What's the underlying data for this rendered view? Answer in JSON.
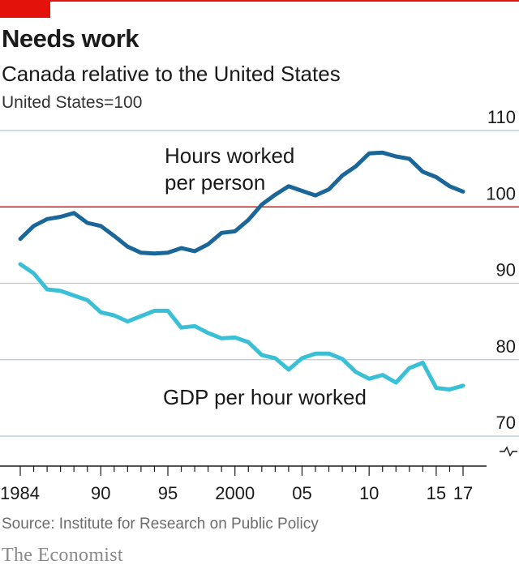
{
  "header": {
    "title": "Needs work",
    "subtitle": "Canada relative to the United States",
    "unit": "United States=100"
  },
  "footer": {
    "source": "Source: Institute for Research on Public Policy",
    "brand": "The Economist"
  },
  "colors": {
    "accent": "#e3120b",
    "hours_line": "#1b6698",
    "gdp_line": "#39c0d6",
    "grid": "#b7c6d4",
    "reference_line": "#e3120b"
  },
  "chart_data": {
    "type": "line",
    "title": "Needs work",
    "subtitle": "Canada relative to the United States",
    "ylabel": "United States=100",
    "ylim": [
      70,
      110
    ],
    "yticks": [
      110,
      100,
      90,
      80,
      70
    ],
    "reference_value": 100,
    "axis_break": true,
    "xlim": [
      1984,
      2017
    ],
    "xticks": [
      {
        "value": 1984,
        "label": "1984"
      },
      {
        "value": 1990,
        "label": "90"
      },
      {
        "value": 1995,
        "label": "95"
      },
      {
        "value": 2000,
        "label": "2000"
      },
      {
        "value": 2005,
        "label": "05"
      },
      {
        "value": 2010,
        "label": "10"
      },
      {
        "value": 2015,
        "label": "15"
      },
      {
        "value": 2017,
        "label": "17"
      }
    ],
    "grid": true,
    "series": [
      {
        "name": "Hours worked per person",
        "label_lines": [
          "Hours worked",
          "per person"
        ],
        "color": "#1b6698",
        "x": [
          1984,
          1985,
          1986,
          1987,
          1988,
          1989,
          1990,
          1991,
          1992,
          1993,
          1994,
          1995,
          1996,
          1997,
          1998,
          1999,
          2000,
          2001,
          2002,
          2003,
          2004,
          2005,
          2006,
          2007,
          2008,
          2009,
          2010,
          2011,
          2012,
          2013,
          2014,
          2015,
          2016,
          2017
        ],
        "values": [
          95.8,
          97.5,
          98.4,
          98.7,
          99.2,
          97.9,
          97.5,
          96.2,
          94.8,
          94.0,
          93.9,
          94.0,
          94.6,
          94.2,
          95.1,
          96.6,
          96.8,
          98.3,
          100.3,
          101.6,
          102.7,
          102.1,
          101.5,
          102.3,
          104.1,
          105.3,
          107.0,
          107.1,
          106.6,
          106.3,
          104.6,
          103.9,
          102.7,
          102.0
        ]
      },
      {
        "name": "GDP per hour worked",
        "label_lines": [
          "GDP per hour worked"
        ],
        "color": "#39c0d6",
        "x": [
          1984,
          1985,
          1986,
          1987,
          1988,
          1989,
          1990,
          1991,
          1992,
          1993,
          1994,
          1995,
          1996,
          1997,
          1998,
          1999,
          2000,
          2001,
          2002,
          2003,
          2004,
          2005,
          2006,
          2007,
          2008,
          2009,
          2010,
          2011,
          2012,
          2013,
          2014,
          2015,
          2016,
          2017
        ],
        "values": [
          92.5,
          91.3,
          89.2,
          89.0,
          88.4,
          87.8,
          86.2,
          85.8,
          85.0,
          85.7,
          86.4,
          86.4,
          84.2,
          84.4,
          83.5,
          82.8,
          82.9,
          82.3,
          80.6,
          80.2,
          78.7,
          80.2,
          80.8,
          80.8,
          80.1,
          78.4,
          77.5,
          78.0,
          77.0,
          78.9,
          79.6,
          76.3,
          76.1,
          76.6
        ]
      }
    ]
  }
}
